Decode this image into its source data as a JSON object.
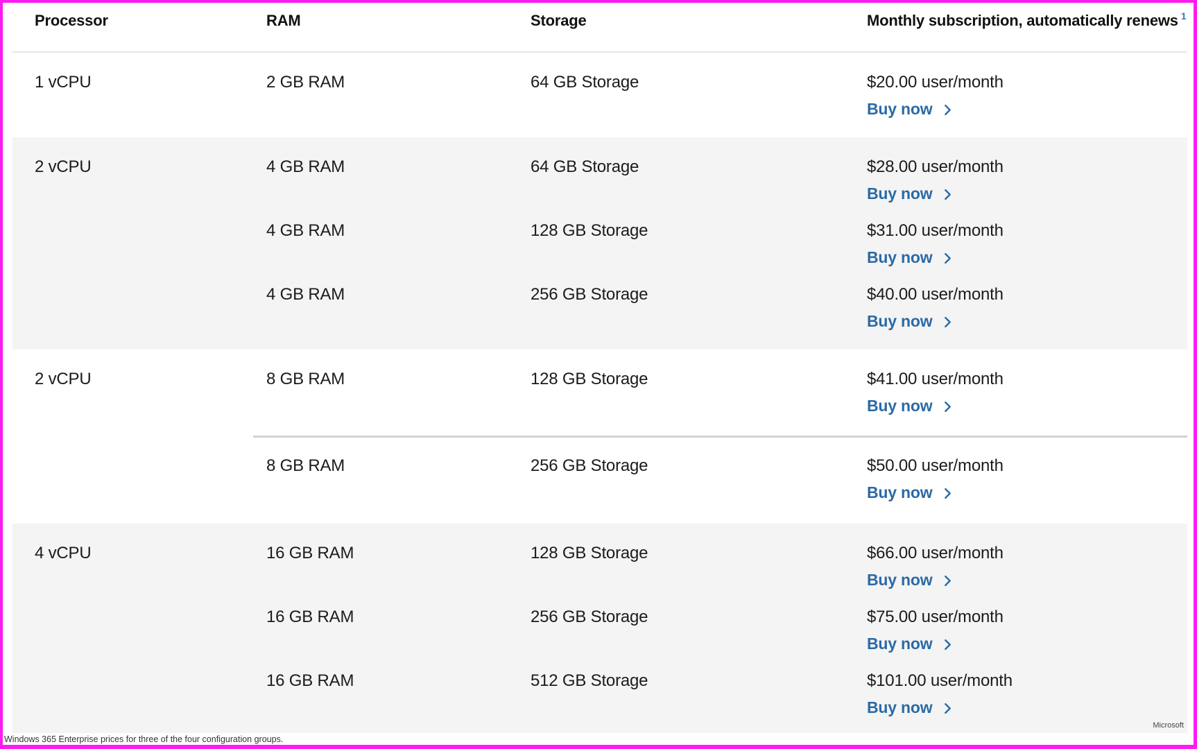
{
  "page": {
    "caption": "Windows 365 Enterprise prices for three of the four configuration groups.",
    "watermark": "Microsoft"
  },
  "colors": {
    "highlight_border": "#ff1aef",
    "link_blue": "#2b6aa5",
    "superscript_blue": "#2e79c9",
    "shaded_row_bg": "#f4f4f4",
    "divider_gray": "#d2d2d2"
  },
  "table": {
    "columns": [
      "Processor",
      "RAM",
      "Storage",
      "Monthly subscription, automatically renews"
    ],
    "header_superscript": "1",
    "buy_label": "Buy now",
    "groups": [
      {
        "shaded": false,
        "processor": "1 vCPU",
        "rows": [
          {
            "ram": "2 GB RAM",
            "storage": "64 GB Storage",
            "price": "$20.00 user/month"
          }
        ]
      },
      {
        "shaded": true,
        "processor": "2 vCPU",
        "rows": [
          {
            "ram": "4 GB RAM",
            "storage": "64 GB Storage",
            "price": "$28.00 user/month"
          },
          {
            "ram": "4 GB RAM",
            "storage": "128 GB Storage",
            "price": "$31.00 user/month"
          },
          {
            "ram": "4 GB RAM",
            "storage": "256 GB Storage",
            "price": "$40.00 user/month"
          }
        ]
      },
      {
        "shaded": false,
        "processor": "2 vCPU",
        "divider_after": 0,
        "rows": [
          {
            "ram": "8 GB RAM",
            "storage": "128 GB Storage",
            "price": "$41.00 user/month"
          },
          {
            "ram": "8 GB RAM",
            "storage": "256 GB Storage",
            "price": "$50.00 user/month"
          }
        ]
      },
      {
        "shaded": true,
        "processor": "4 vCPU",
        "rows": [
          {
            "ram": "16 GB RAM",
            "storage": "128 GB Storage",
            "price": "$66.00 user/month"
          },
          {
            "ram": "16 GB RAM",
            "storage": "256 GB Storage",
            "price": "$75.00 user/month"
          },
          {
            "ram": "16 GB RAM",
            "storage": "512 GB Storage",
            "price": "$101.00 user/month"
          }
        ]
      }
    ]
  }
}
